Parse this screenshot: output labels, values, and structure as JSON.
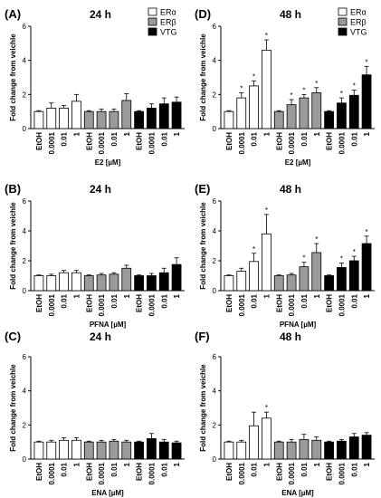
{
  "chart_data": [
    {
      "type": "bar",
      "panel_label": "(A)",
      "title": "24 h",
      "ylabel": "Fold change from veichle",
      "xlabel": "E2 [µM]",
      "ylim": [
        0,
        6
      ],
      "yticks": [
        0,
        2,
        4,
        6
      ],
      "categories": [
        "EtOH",
        "0.0001",
        "0.01",
        "1"
      ],
      "legend": {
        "shown": true,
        "position": "top-right",
        "entries": [
          "ERα",
          "ERβ",
          "VTG"
        ]
      },
      "series": [
        {
          "name": "ERα",
          "values": [
            1.0,
            1.2,
            1.2,
            1.6
          ],
          "errors": [
            0.05,
            0.3,
            0.15,
            0.4
          ],
          "significant": [
            false,
            false,
            false,
            false
          ]
        },
        {
          "name": "ERβ",
          "values": [
            1.0,
            1.0,
            1.0,
            1.65
          ],
          "errors": [
            0.05,
            0.15,
            0.15,
            0.4
          ],
          "significant": [
            false,
            false,
            false,
            false
          ]
        },
        {
          "name": "VTG",
          "values": [
            1.0,
            1.2,
            1.45,
            1.55
          ],
          "errors": [
            0.05,
            0.25,
            0.35,
            0.3
          ],
          "significant": [
            false,
            false,
            false,
            false
          ]
        }
      ]
    },
    {
      "type": "bar",
      "panel_label": "(D)",
      "title": "48 h",
      "ylabel": "Fold change from veichle",
      "xlabel": "E2 [µM]",
      "ylim": [
        0,
        6
      ],
      "yticks": [
        0,
        2,
        4,
        6
      ],
      "categories": [
        "EtOH",
        "0.0001",
        "0.01",
        "1"
      ],
      "legend": {
        "shown": true,
        "position": "top-right",
        "entries": [
          "ERα",
          "ERβ",
          "VTG"
        ]
      },
      "series": [
        {
          "name": "ERα",
          "values": [
            1.0,
            1.8,
            2.5,
            4.6
          ],
          "errors": [
            0.05,
            0.3,
            0.3,
            0.6
          ],
          "significant": [
            false,
            true,
            true,
            true
          ]
        },
        {
          "name": "ERβ",
          "values": [
            1.0,
            1.4,
            1.8,
            2.1
          ],
          "errors": [
            0.05,
            0.3,
            0.2,
            0.3
          ],
          "significant": [
            false,
            true,
            true,
            true
          ]
        },
        {
          "name": "VTG",
          "values": [
            1.0,
            1.5,
            1.95,
            3.15
          ],
          "errors": [
            0.05,
            0.3,
            0.3,
            0.5
          ],
          "significant": [
            false,
            true,
            true,
            true
          ]
        }
      ]
    },
    {
      "type": "bar",
      "panel_label": "(B)",
      "title": "24 h",
      "ylabel": "Fold change from veichle",
      "xlabel": "PFNA [µM]",
      "ylim": [
        0,
        6
      ],
      "yticks": [
        0,
        2,
        4,
        6
      ],
      "categories": [
        "EtOH",
        "0.0001",
        "0.01",
        "1"
      ],
      "legend": {
        "shown": false,
        "position": "top-right",
        "entries": []
      },
      "series": [
        {
          "name": "ERα",
          "values": [
            1.0,
            1.0,
            1.2,
            1.2
          ],
          "errors": [
            0.05,
            0.1,
            0.15,
            0.15
          ],
          "significant": [
            false,
            false,
            false,
            false
          ]
        },
        {
          "name": "ERβ",
          "values": [
            1.0,
            1.05,
            1.1,
            1.5
          ],
          "errors": [
            0.05,
            0.1,
            0.1,
            0.2
          ],
          "significant": [
            false,
            false,
            false,
            false
          ]
        },
        {
          "name": "VTG",
          "values": [
            1.0,
            1.0,
            1.2,
            1.75
          ],
          "errors": [
            0.05,
            0.15,
            0.3,
            0.45
          ],
          "significant": [
            false,
            false,
            false,
            false
          ]
        }
      ]
    },
    {
      "type": "bar",
      "panel_label": "(E)",
      "title": "48 h",
      "ylabel": "Fold change from veichle",
      "xlabel": "PFNA [µM]",
      "ylim": [
        0,
        6
      ],
      "yticks": [
        0,
        2,
        4,
        6
      ],
      "categories": [
        "EtOH",
        "0.0001",
        "0.01",
        "1"
      ],
      "legend": {
        "shown": false,
        "position": "top-right",
        "entries": []
      },
      "series": [
        {
          "name": "ERα",
          "values": [
            1.0,
            1.3,
            1.95,
            3.8
          ],
          "errors": [
            0.05,
            0.2,
            0.55,
            1.3
          ],
          "significant": [
            false,
            false,
            true,
            true
          ]
        },
        {
          "name": "ERβ",
          "values": [
            1.0,
            1.05,
            1.6,
            2.55
          ],
          "errors": [
            0.05,
            0.1,
            0.3,
            0.6
          ],
          "significant": [
            false,
            false,
            true,
            true
          ]
        },
        {
          "name": "VTG",
          "values": [
            1.0,
            1.55,
            2.0,
            3.15
          ],
          "errors": [
            0.05,
            0.3,
            0.3,
            0.5
          ],
          "significant": [
            false,
            true,
            true,
            true
          ]
        }
      ]
    },
    {
      "type": "bar",
      "panel_label": "(C)",
      "title": "24 h",
      "ylabel": "Fold change from veichle",
      "xlabel": "ENA [µM]",
      "ylim": [
        0,
        6
      ],
      "yticks": [
        0,
        2,
        4,
        6
      ],
      "categories": [
        "EtOH",
        "0.0001",
        "0.01",
        "1"
      ],
      "legend": {
        "shown": false,
        "position": "top-right",
        "entries": []
      },
      "series": [
        {
          "name": "ERα",
          "values": [
            1.0,
            1.0,
            1.1,
            1.1
          ],
          "errors": [
            0.05,
            0.1,
            0.15,
            0.15
          ],
          "significant": [
            false,
            false,
            false,
            false
          ]
        },
        {
          "name": "ERβ",
          "values": [
            1.0,
            1.0,
            1.05,
            1.0
          ],
          "errors": [
            0.05,
            0.1,
            0.1,
            0.1
          ],
          "significant": [
            false,
            false,
            false,
            false
          ]
        },
        {
          "name": "VTG",
          "values": [
            1.0,
            1.2,
            1.0,
            0.95
          ],
          "errors": [
            0.05,
            0.3,
            0.15,
            0.1
          ],
          "significant": [
            false,
            false,
            false,
            false
          ]
        }
      ]
    },
    {
      "type": "bar",
      "panel_label": "(F)",
      "title": "48 h",
      "ylabel": "Fold change from veichle",
      "xlabel": "ENA [µM]",
      "ylim": [
        0,
        6
      ],
      "yticks": [
        0,
        2,
        4,
        6
      ],
      "categories": [
        "EtOH",
        "0.0001",
        "0.01",
        "1"
      ],
      "legend": {
        "shown": false,
        "position": "top-right",
        "entries": []
      },
      "series": [
        {
          "name": "ERα",
          "values": [
            1.0,
            1.0,
            1.95,
            2.4
          ],
          "errors": [
            0.05,
            0.1,
            0.8,
            0.35
          ],
          "significant": [
            false,
            false,
            false,
            true
          ]
        },
        {
          "name": "ERβ",
          "values": [
            1.0,
            1.0,
            1.15,
            1.1
          ],
          "errors": [
            0.05,
            0.15,
            0.3,
            0.2
          ],
          "significant": [
            false,
            false,
            false,
            false
          ]
        },
        {
          "name": "VTG",
          "values": [
            1.0,
            1.05,
            1.3,
            1.4
          ],
          "errors": [
            0.05,
            0.1,
            0.2,
            0.15
          ],
          "significant": [
            false,
            false,
            false,
            false
          ]
        }
      ]
    }
  ],
  "colors": {
    "ERα": "#ffffff",
    "ERβ": "#9a9a9a",
    "VTG": "#000000",
    "axis": "#000000"
  },
  "significance_marker": "*"
}
